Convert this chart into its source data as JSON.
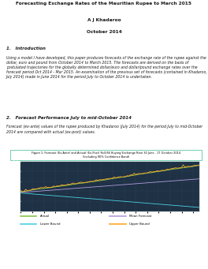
{
  "title": "Forecasting Exchange Rates of the Mauritian Rupee to March 2015",
  "author": "A J Khadaroo",
  "date": "October 2014",
  "section1_title": "1.   Introduction",
  "section1_text": "Using a model I have developed, this paper produces forecasts of the exchange rate of the rupee against the dollar, euro and pound from October 2014 to March 2015. The forecasts are derived on the basis of postulated trajectories for the globally determined dollar/euro and dollar/pound exchange rates over the forecast period Oct 2014 - Mar 2015. An examination of the previous set of forecasts (contained in Khadaroo, July 2014) made in June 2014 for the period July to October 2014 is undertaken.",
  "section2_title": "2.   Forecast Performance July to mid-October 2014",
  "section2_text": "Forecast (ex-ante) values of the rupee produced by Khadaroo (July 2014) for the period July to mid-October 2014 are compared with actual (ex-post) values.",
  "figure_title_line1": "Figure 1: Forecast (Ex-Ante) and Actual (Ex-Post) Rs/US$ Buying Exchange Rate 30 June - 17 October 2014",
  "figure_title_line2": "(Including 90% Confidence Band)",
  "chart_bg": "#1e3145",
  "chart_border": "#5bc8a0",
  "y_min": 29.2,
  "y_max": 31.2,
  "y_ticks": [
    29.2,
    29.6,
    30.0,
    30.4,
    30.8,
    31.2
  ],
  "actual_color": "#8bc34a",
  "mean_forecast_color": "#b39ddb",
  "lower_bound_color": "#4dd0e1",
  "upper_bound_color": "#ffa726",
  "text_color": "#1a1a1a",
  "fig_bg": "#ffffff"
}
